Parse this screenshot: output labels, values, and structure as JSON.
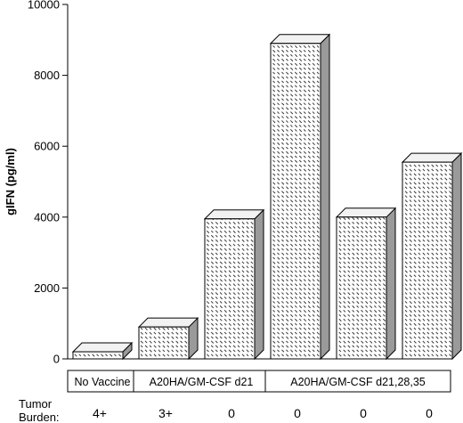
{
  "chart_data": {
    "type": "bar",
    "style": "3d-hatched",
    "ylabel": "gIFN (pg/ml)",
    "ylim": [
      0,
      10000
    ],
    "yticks": [
      0,
      2000,
      4000,
      6000,
      8000,
      10000
    ],
    "values": [
      200,
      900,
      3950,
      8900,
      4000,
      5550
    ],
    "groups": [
      {
        "label": "No Vaccine",
        "bars": [
          0
        ]
      },
      {
        "label": "A20HA/GM-CSF d21",
        "bars": [
          1,
          2
        ]
      },
      {
        "label": "A20HA/GM-CSF d21,28,35",
        "bars": [
          3,
          4,
          5
        ]
      }
    ],
    "tumor_burden_label": [
      "Tumor",
      "Burden:"
    ],
    "tumor_burden": [
      "4+",
      "3+",
      "0",
      "0",
      "0",
      "0"
    ],
    "colors": {
      "front": "#ffffff",
      "top": "#f2f2f2",
      "side": "#9a9a9a",
      "hatch": "#222222"
    }
  }
}
